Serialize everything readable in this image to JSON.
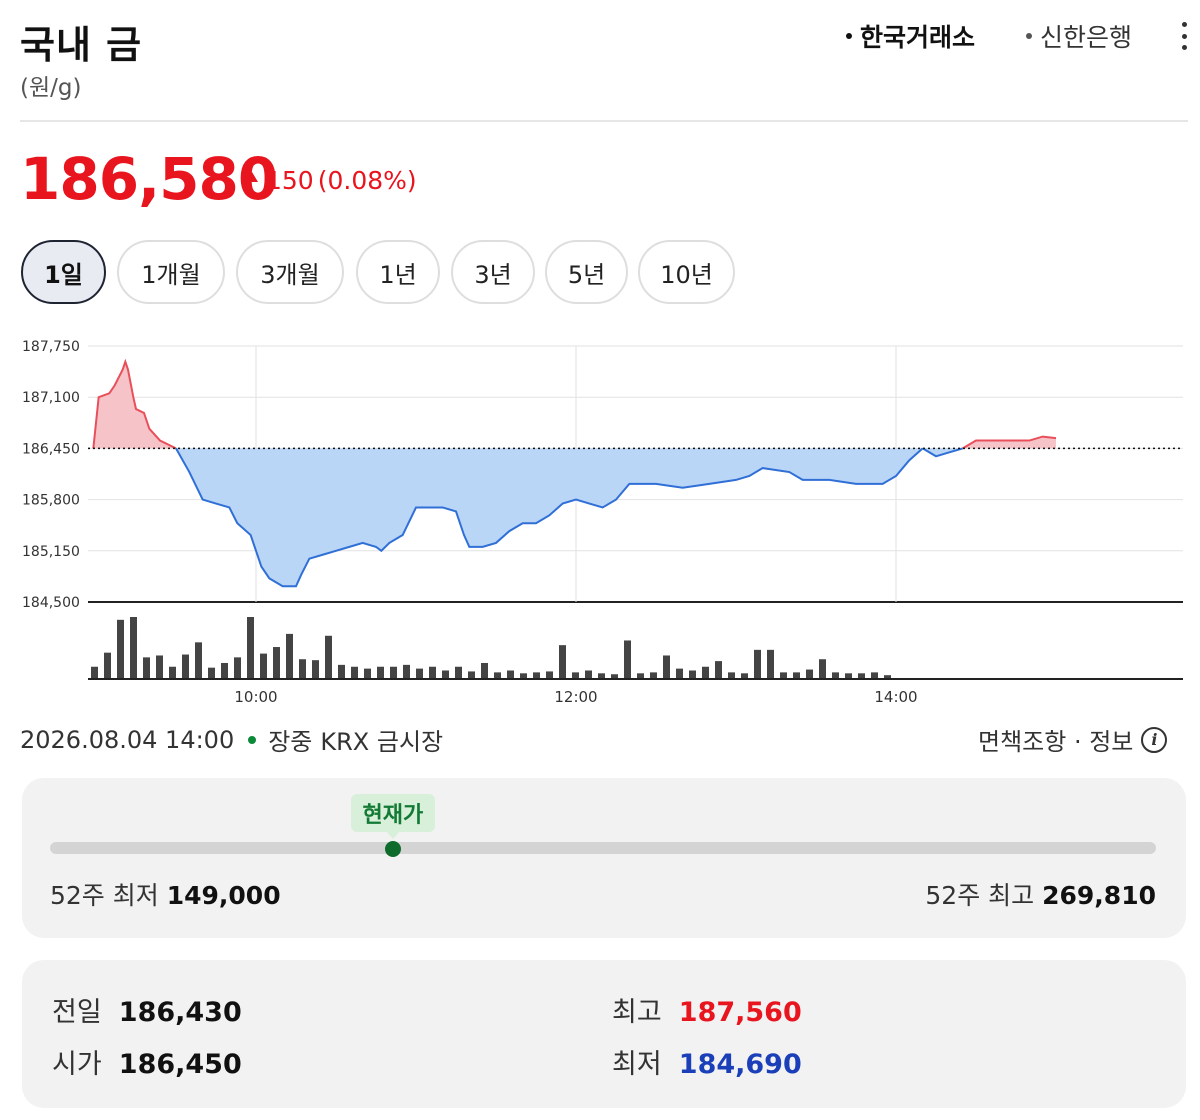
{
  "header": {
    "title": "국내 금",
    "unit": "(원/g)",
    "sources": [
      "한국거래소",
      "신한은행"
    ],
    "more_icon": "more-vertical-icon"
  },
  "quote": {
    "price": "186,580",
    "change": "150",
    "change_pct": "(0.08%)",
    "direction": "up"
  },
  "periods": [
    "1일",
    "1개월",
    "3개월",
    "1년",
    "3년",
    "5년",
    "10년"
  ],
  "selected_period": "1일",
  "chart_data": {
    "type": "area",
    "y_ticks": [
      "187,750",
      "187,100",
      "186,450",
      "185,800",
      "185,150",
      "184,500"
    ],
    "x_ticks": [
      "10:00",
      "12:00",
      "14:00"
    ],
    "ylim": [
      184500,
      187750
    ],
    "baseline": 186450,
    "grid": true,
    "price_series": [
      [
        "08:59",
        186450
      ],
      [
        "09:01",
        187100
      ],
      [
        "09:05",
        187150
      ],
      [
        "09:07",
        187250
      ],
      [
        "09:10",
        187450
      ],
      [
        "09:11",
        187550
      ],
      [
        "09:12",
        187450
      ],
      [
        "09:14",
        187100
      ],
      [
        "09:15",
        186950
      ],
      [
        "09:18",
        186900
      ],
      [
        "09:20",
        186700
      ],
      [
        "09:24",
        186550
      ],
      [
        "09:30",
        186450
      ],
      [
        "09:35",
        186150
      ],
      [
        "09:40",
        185800
      ],
      [
        "09:45",
        185750
      ],
      [
        "09:50",
        185700
      ],
      [
        "09:53",
        185500
      ],
      [
        "09:58",
        185350
      ],
      [
        "10:02",
        184950
      ],
      [
        "10:05",
        184800
      ],
      [
        "10:10",
        184700
      ],
      [
        "10:15",
        184700
      ],
      [
        "10:17",
        184850
      ],
      [
        "10:20",
        185050
      ],
      [
        "10:25",
        185100
      ],
      [
        "10:30",
        185150
      ],
      [
        "10:35",
        185200
      ],
      [
        "10:40",
        185250
      ],
      [
        "10:45",
        185200
      ],
      [
        "10:47",
        185150
      ],
      [
        "10:50",
        185250
      ],
      [
        "10:55",
        185350
      ],
      [
        "11:00",
        185700
      ],
      [
        "11:05",
        185700
      ],
      [
        "11:10",
        185700
      ],
      [
        "11:15",
        185650
      ],
      [
        "11:18",
        185350
      ],
      [
        "11:20",
        185200
      ],
      [
        "11:25",
        185200
      ],
      [
        "11:30",
        185250
      ],
      [
        "11:35",
        185400
      ],
      [
        "11:40",
        185500
      ],
      [
        "11:45",
        185500
      ],
      [
        "11:50",
        185600
      ],
      [
        "11:55",
        185750
      ],
      [
        "12:00",
        185800
      ],
      [
        "12:05",
        185750
      ],
      [
        "12:10",
        185700
      ],
      [
        "12:15",
        185800
      ],
      [
        "12:20",
        186000
      ],
      [
        "12:30",
        186000
      ],
      [
        "12:40",
        185950
      ],
      [
        "12:50",
        186000
      ],
      [
        "13:00",
        186050
      ],
      [
        "13:05",
        186100
      ],
      [
        "13:10",
        186200
      ],
      [
        "13:20",
        186150
      ],
      [
        "13:25",
        186050
      ],
      [
        "13:35",
        186050
      ],
      [
        "13:45",
        186000
      ],
      [
        "13:55",
        186000
      ],
      [
        "14:00",
        186100
      ],
      [
        "14:05",
        186300
      ],
      [
        "14:10",
        186450
      ],
      [
        "14:15",
        186350
      ],
      [
        "14:20",
        186400
      ],
      [
        "14:25",
        186450
      ],
      [
        "14:30",
        186550
      ],
      [
        "14:40",
        186550
      ],
      [
        "14:50",
        186550
      ],
      [
        "14:55",
        186600
      ],
      [
        "15:00",
        186580
      ]
    ],
    "volume_bars": [
      12,
      27,
      62,
      65,
      22,
      24,
      12,
      25,
      38,
      11,
      16,
      22,
      65,
      26,
      33,
      47,
      20,
      19,
      45,
      14,
      12,
      10,
      12,
      12,
      14,
      10,
      12,
      8,
      12,
      7,
      16,
      6,
      8,
      5,
      6,
      7,
      35,
      6,
      8,
      5,
      4,
      40,
      5,
      6,
      24,
      10,
      8,
      12,
      18,
      6,
      5,
      30,
      30,
      6,
      6,
      9,
      20,
      6,
      5,
      5,
      6,
      3
    ],
    "colors": {
      "up": "#e84f5a",
      "up_fill": "#f6c4c8",
      "down": "#2f6fd6",
      "down_fill": "#b9d6f7",
      "volume": "#444444"
    }
  },
  "market_status": {
    "datetime": "2026.08.04 14:00",
    "state": "장중",
    "market": "KRX 금시장",
    "disclaimer": "면책조항 · 정보"
  },
  "range_52w": {
    "current_label": "현재가",
    "low_label": "52주 최저",
    "low": "149,000",
    "high_label": "52주 최고",
    "high": "269,810",
    "current_position": 0.31
  },
  "stats": {
    "prev_close_label": "전일",
    "prev_close": "186,430",
    "open_label": "시가",
    "open": "186,450",
    "high_label": "최고",
    "high": "187,560",
    "low_label": "최저",
    "low": "184,690",
    "high_color": "#e8141e",
    "low_color": "#1a3fb8"
  }
}
